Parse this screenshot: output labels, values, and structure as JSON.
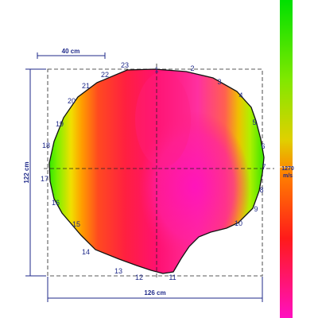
{
  "colors": {
    "dim_lines": "#1f2a8a",
    "point_labels": "#1f2a8a",
    "outline": "#111111",
    "scale_green": "#00e000",
    "scale_yellow": "#f0e000",
    "scale_orange": "#ff8000",
    "scale_red": "#ff1a1a",
    "scale_magenta": "#ff10c0"
  },
  "scale_bar": {
    "label": "40 cm"
  },
  "dimensions": {
    "width": "126 cm",
    "height": "122 cm"
  },
  "color_scale": {
    "value": "1270",
    "unit": "m/s"
  },
  "points": [
    "1",
    "2",
    "3",
    "4",
    "5",
    "6",
    "7",
    "8",
    "9",
    "10",
    "11",
    "12",
    "13",
    "14",
    "15",
    "16",
    "17",
    "18",
    "19",
    "20",
    "21",
    "22",
    "23"
  ]
}
